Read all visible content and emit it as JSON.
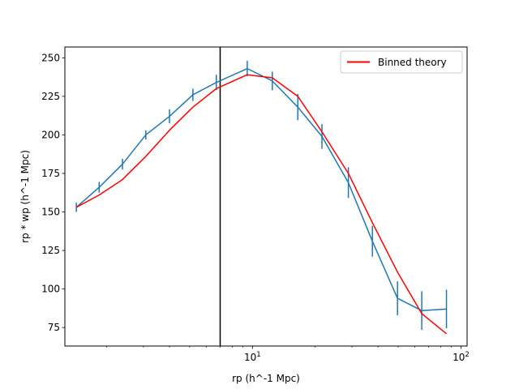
{
  "chart_data": {
    "type": "line",
    "xlabel": "rp (h^-1 Mpc)",
    "ylabel": "rp * wp (h^-1 Mpc)",
    "xscale": "log",
    "xlim": [
      1.26,
      107
    ],
    "ylim": [
      63,
      257
    ],
    "x_ticks": [
      {
        "value": 10,
        "base": "10",
        "exp": "1"
      },
      {
        "value": 100,
        "base": "10",
        "exp": "2"
      }
    ],
    "y_ticks": [
      75,
      100,
      125,
      150,
      175,
      200,
      225,
      250
    ],
    "vertical_line": {
      "x": 7.0,
      "color": "#000000"
    },
    "legend": {
      "position": "upper-right",
      "entries": [
        "Binned theory"
      ]
    },
    "grid": false,
    "series": [
      {
        "kind": "errorbar",
        "color": "#1f77b4",
        "x": [
          1.43,
          1.84,
          2.38,
          3.08,
          4.0,
          5.18,
          6.71,
          9.44,
          12.45,
          16.5,
          21.54,
          28.84,
          37.6,
          49.62,
          64.86,
          85.19
        ],
        "y": [
          153,
          166,
          181,
          200,
          212,
          226,
          234,
          243,
          235,
          218,
          199,
          169,
          131,
          94,
          86,
          87
        ],
        "yerr": [
          3,
          3.5,
          3.5,
          3,
          4.5,
          4,
          5,
          5,
          6,
          8.5,
          8,
          10,
          10,
          11,
          12.5,
          12.5
        ]
      },
      {
        "name": "Binned theory",
        "kind": "line",
        "color": "#ff0000",
        "x": [
          1.43,
          1.84,
          2.38,
          3.08,
          4.0,
          5.18,
          6.71,
          9.44,
          12.45,
          16.5,
          21.54,
          28.84,
          37.6,
          49.62,
          64.86,
          85.19
        ],
        "y": [
          153,
          161,
          171,
          186,
          203,
          218,
          230,
          239,
          237,
          225,
          202,
          175,
          143,
          111,
          84,
          71
        ]
      }
    ]
  }
}
